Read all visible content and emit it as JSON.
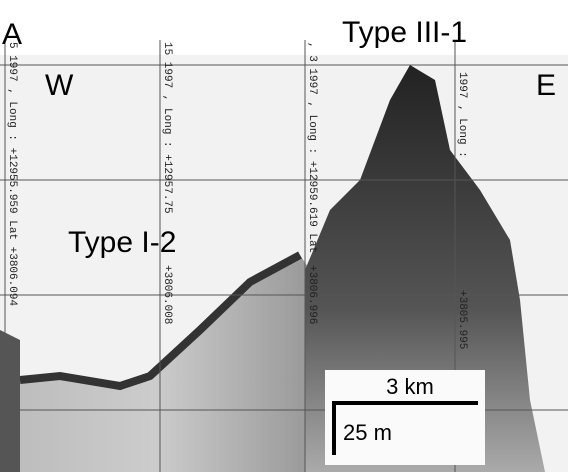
{
  "panel_label": "A",
  "labels": {
    "west": "W",
    "east": "E",
    "type_upper": "Type III-1",
    "type_lower": "Type I-2"
  },
  "scale": {
    "horizontal": "3 km",
    "vertical": "25 m"
  },
  "annotations": [
    [
      "5 1997 , Long : +12955.959  Lat  +3806.094"
    ],
    [
      "15 1997 , Long : +12957.75",
      "+3806.008"
    ],
    [
      ", 3 1997 , Long : +12959.619  Lat",
      "+3806.996"
    ],
    [
      "1997 , Long :",
      "+3805.995"
    ]
  ]
}
